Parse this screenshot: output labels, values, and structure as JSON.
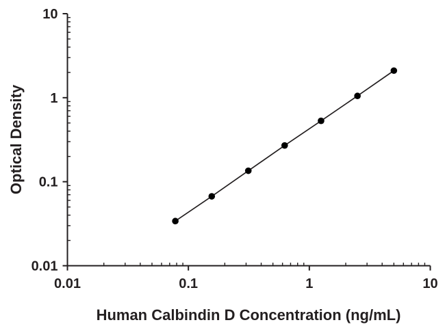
{
  "figure": {
    "background": "#ffffff"
  },
  "chart_data": {
    "type": "scatter",
    "title": "",
    "xlabel": "Human Calbindin D Concentration (ng/mL)",
    "ylabel": "Optical Density",
    "x_scale": "log",
    "y_scale": "log",
    "xlim": [
      0.01,
      10
    ],
    "ylim": [
      0.01,
      10
    ],
    "x_ticks": [
      0.01,
      0.1,
      1,
      10
    ],
    "x_tick_labels": [
      "0.01",
      "0.1",
      "1",
      "10"
    ],
    "y_ticks": [
      10,
      1,
      0.1,
      0.01
    ],
    "y_tick_labels": [
      "10",
      "1",
      "0.1",
      "0.01"
    ],
    "grid": false,
    "legend": false,
    "series": [
      {
        "name": "standard-curve",
        "x": [
          0.078,
          0.156,
          0.313,
          0.625,
          1.25,
          2.5,
          5
        ],
        "y": [
          0.034,
          0.067,
          0.135,
          0.27,
          0.53,
          1.05,
          2.1
        ],
        "marker": "filled-circle",
        "line": true
      }
    ],
    "colors": {
      "axis": "#231f20",
      "line": "#231f20",
      "marker": "#000000",
      "text": "#231f20"
    }
  }
}
